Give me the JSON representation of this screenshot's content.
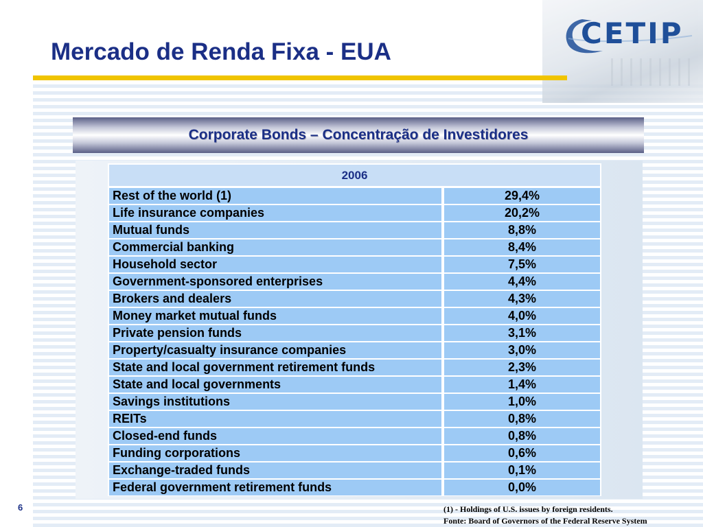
{
  "header": {
    "title": "Mercado de Renda Fixa - EUA",
    "logo_text": "CETIP",
    "accent_color": "#f0c400",
    "title_color": "#1b2f86"
  },
  "section": {
    "heading": "Corporate Bonds – Concentração de Investidores"
  },
  "table": {
    "year_header": "2006",
    "rows": [
      {
        "label": "Rest of the world (1)",
        "value": "29,4%"
      },
      {
        "label": "Life insurance companies",
        "value": "20,2%"
      },
      {
        "label": "Mutual funds",
        "value": "8,8%"
      },
      {
        "label": "Commercial banking",
        "value": "8,4%"
      },
      {
        "label": "Household sector",
        "value": "7,5%"
      },
      {
        "label": "Government-sponsored enterprises",
        "value": "4,4%"
      },
      {
        "label": "Brokers and dealers",
        "value": "4,3%"
      },
      {
        "label": "Money market mutual funds",
        "value": "4,0%"
      },
      {
        "label": "Private pension funds",
        "value": "3,1%"
      },
      {
        "label": "Property/casualty insurance companies",
        "value": "3,0%"
      },
      {
        "label": "State and local government retirement funds",
        "value": "2,3%"
      },
      {
        "label": "State and local governments",
        "value": "1,4%"
      },
      {
        "label": "Savings institutions",
        "value": "1,0%"
      },
      {
        "label": "REITs",
        "value": "0,8%"
      },
      {
        "label": "Closed-end funds",
        "value": "0,8%"
      },
      {
        "label": "Funding corporations",
        "value": "0,6%"
      },
      {
        "label": "Exchange-traded funds",
        "value": "0,1%"
      },
      {
        "label": "Federal government retirement funds",
        "value": "0,0%"
      }
    ]
  },
  "footer": {
    "page_number": "6",
    "footnote": "(1) - Holdings of U.S. issues by foreign residents.",
    "source": "Fonte: Board of Governors of the Federal Reserve System"
  }
}
